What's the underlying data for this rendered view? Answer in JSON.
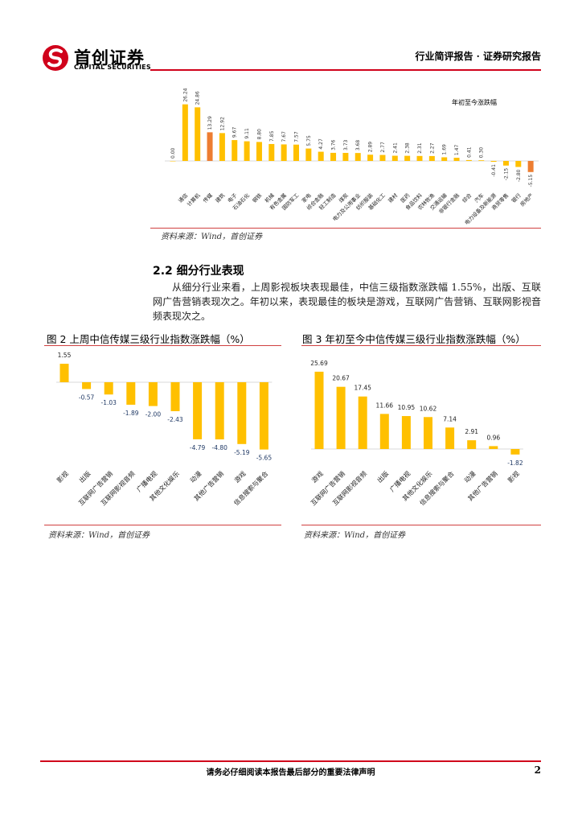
{
  "header": {
    "logo_cn": "首创证券",
    "logo_en": "CAPITAL SECURITIES",
    "title": "行业简评报告 · 证券研究报告"
  },
  "colors": {
    "accent_red": "#d0021b",
    "bar_yellow": "#FFC000",
    "bar_orange": "#ED7D31"
  },
  "figure1": {
    "source": "资料来源：Wind，首创证券"
  },
  "section": {
    "heading": "2.2  细分行业表现",
    "paragraph": "从细分行业来看，上周影视板块表现最佳，中信三级指数涨跌幅 1.55%，出版、互联网广告营销表现次之。年初以来，表现最佳的板块是游戏，互联网广告营销、互联网影视音频表现次之。"
  },
  "figure2": {
    "title": "图 2 上周中信传媒三级行业指数涨跌幅（%）",
    "source": "资料来源：Wind，首创证券"
  },
  "figure3": {
    "title": "图 3 年初至今中信传媒三级行业指数涨跌幅（%）",
    "source": "资料来源：Wind，首创证券"
  },
  "footer": {
    "disclaimer": "请务必仔细阅读本报告最后部分的重要法律声明",
    "page": "2"
  },
  "chart_data": [
    {
      "type": "bar",
      "legend": "年初至今涨跌幅",
      "legend_position": "top-right",
      "categories": [
        "",
        "通信",
        "计算机",
        "传媒",
        "建筑",
        "电子",
        "石油石化",
        "钢铁",
        "机械",
        "有色金属",
        "国防军工",
        "家电",
        "综合金融",
        "轻工制造",
        "煤炭",
        "电力及公用事业",
        "纺织服装",
        "基础化工",
        "建材",
        "医药",
        "食品饮料",
        "农林牧渔",
        "交通运输",
        "非银行金融",
        "综合",
        "汽车",
        "电力设备及新能源",
        "商贸零售",
        "银行",
        "房地产"
      ],
      "values": [
        0.0,
        26.24,
        24.86,
        13.29,
        12.92,
        9.67,
        9.11,
        8.8,
        7.85,
        7.67,
        7.57,
        5.75,
        4.27,
        3.76,
        3.73,
        3.68,
        2.89,
        2.77,
        2.41,
        2.38,
        2.31,
        2.27,
        1.69,
        1.47,
        0.41,
        0.3,
        -0.41,
        -2.15,
        -2.8,
        -5.15
      ],
      "highlight": [
        "传媒",
        "房地产"
      ],
      "grid": false
    },
    {
      "type": "bar",
      "categories": [
        "影视",
        "出版",
        "互联网广告营销",
        "互联网影视音频",
        "广播电视",
        "其他文化娱乐",
        "动漫",
        "其他广告营销",
        "游戏",
        "信息搜索与聚合"
      ],
      "values": [
        1.55,
        -0.57,
        -1.03,
        -1.89,
        -2.0,
        -2.43,
        -4.79,
        -4.8,
        -5.19,
        -5.65
      ],
      "grid": false
    },
    {
      "type": "bar",
      "categories": [
        "游戏",
        "互联网广告营销",
        "互联网影视音频",
        "出版",
        "广播电视",
        "其他文化娱乐",
        "信息搜索与聚合",
        "动漫",
        "其他广告营销",
        "影视"
      ],
      "values": [
        25.69,
        20.67,
        17.45,
        11.66,
        10.95,
        10.62,
        7.14,
        2.91,
        0.96,
        -1.82
      ],
      "grid": false
    }
  ]
}
